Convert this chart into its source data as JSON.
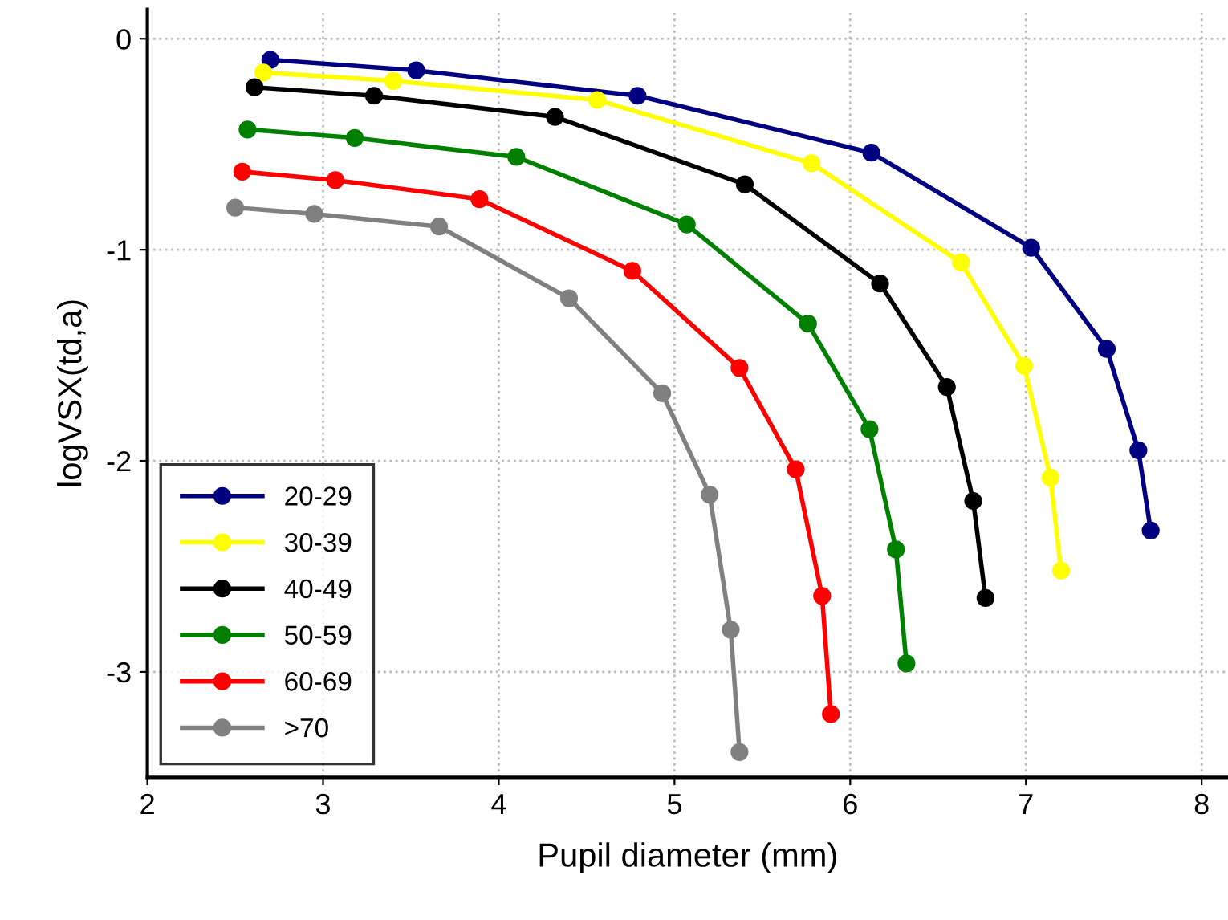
{
  "chart_data": {
    "type": "line",
    "xlabel": "Pupil diameter (mm)",
    "ylabel": "logVSX(td,a)",
    "xlim": [
      2,
      8.15
    ],
    "ylim": [
      -3.5,
      0.14
    ],
    "xticks": [
      2,
      3,
      4,
      5,
      6,
      7,
      8
    ],
    "yticks": [
      {
        "value": 0,
        "label": "0"
      },
      {
        "value": -1,
        "label": "-1"
      },
      {
        "value": -2,
        "label": "-2"
      },
      {
        "value": -3,
        "label": "-3"
      }
    ],
    "grid": true,
    "legend": "bottom left",
    "marker": "circle",
    "line_style": "solid",
    "series": [
      {
        "name": "20-29",
        "color": "#000080",
        "x": [
          2.7,
          3.53,
          4.79,
          6.12,
          7.03,
          7.46,
          7.64,
          7.71
        ],
        "values": [
          -0.1,
          -0.15,
          -0.27,
          -0.54,
          -0.99,
          -1.47,
          -1.95,
          -2.33
        ]
      },
      {
        "name": "30-39",
        "color": "#ffff00",
        "x": [
          2.66,
          3.4,
          4.56,
          5.78,
          6.63,
          6.99,
          7.14,
          7.2
        ],
        "values": [
          -0.16,
          -0.2,
          -0.29,
          -0.59,
          -1.06,
          -1.55,
          -2.08,
          -2.52
        ]
      },
      {
        "name": "40-49",
        "color": "#000000",
        "x": [
          2.61,
          3.29,
          4.32,
          5.4,
          6.17,
          6.55,
          6.7,
          6.77
        ],
        "values": [
          -0.23,
          -0.27,
          -0.37,
          -0.69,
          -1.16,
          -1.65,
          -2.19,
          -2.65
        ]
      },
      {
        "name": "50-59",
        "color": "#008000",
        "x": [
          2.57,
          3.18,
          4.1,
          5.07,
          5.76,
          6.11,
          6.26,
          6.32
        ],
        "values": [
          -0.43,
          -0.47,
          -0.56,
          -0.88,
          -1.35,
          -1.85,
          -2.42,
          -2.96
        ]
      },
      {
        "name": "60-69",
        "color": "#ff0000",
        "x": [
          2.54,
          3.07,
          3.89,
          4.76,
          5.37,
          5.69,
          5.84,
          5.89
        ],
        "values": [
          -0.63,
          -0.67,
          -0.76,
          -1.1,
          -1.56,
          -2.04,
          -2.64,
          -3.2
        ]
      },
      {
        "name": ">70",
        "color": "#808080",
        "x": [
          2.5,
          2.95,
          3.66,
          4.4,
          4.93,
          5.2,
          5.32,
          5.37
        ],
        "values": [
          -0.8,
          -0.83,
          -0.89,
          -1.23,
          -1.68,
          -2.16,
          -2.8,
          -3.38
        ]
      }
    ]
  }
}
